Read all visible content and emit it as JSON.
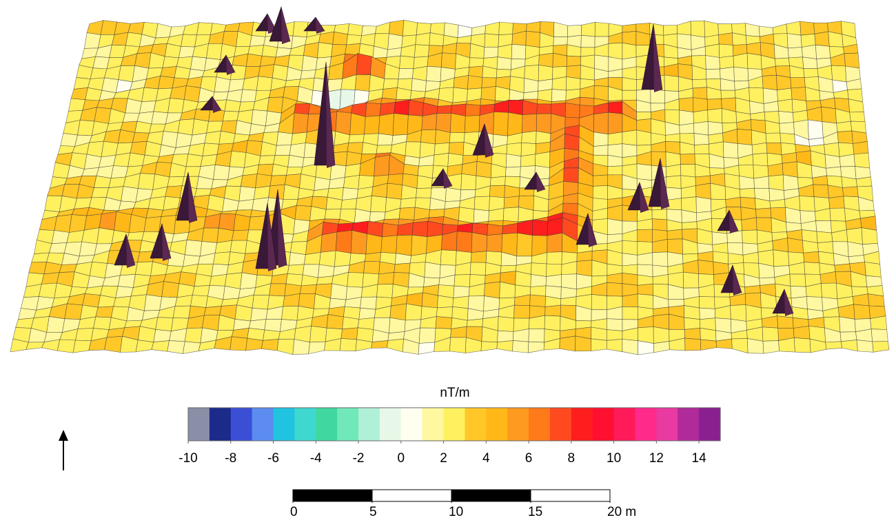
{
  "colorbar": {
    "label": "nT/m",
    "lim": [
      -10,
      15
    ],
    "ticks": [
      -10,
      -8,
      -6,
      -4,
      -2,
      0,
      2,
      4,
      6,
      8,
      10,
      12,
      14
    ],
    "colors": [
      "#8a8fa8",
      "#1c2a8a",
      "#3b4fd6",
      "#5c8cf0",
      "#20c4e0",
      "#3fd8d0",
      "#40d8a0",
      "#70e8b8",
      "#b0f0d8",
      "#e8f8e8",
      "#fffff0",
      "#fff8a0",
      "#fff060",
      "#ffc828",
      "#ffb818",
      "#ff9a20",
      "#ff7a18",
      "#ff4a20",
      "#ff1e1e",
      "#ff1030",
      "#ff1a5a",
      "#ff2a8a",
      "#e83aa0",
      "#b02a9a",
      "#8a2090"
    ]
  },
  "scale_bar": {
    "lim": [
      0,
      20
    ],
    "ticks": [
      0,
      5,
      10,
      15,
      {
        "value": 20,
        "label": "20 m"
      }
    ]
  }
}
